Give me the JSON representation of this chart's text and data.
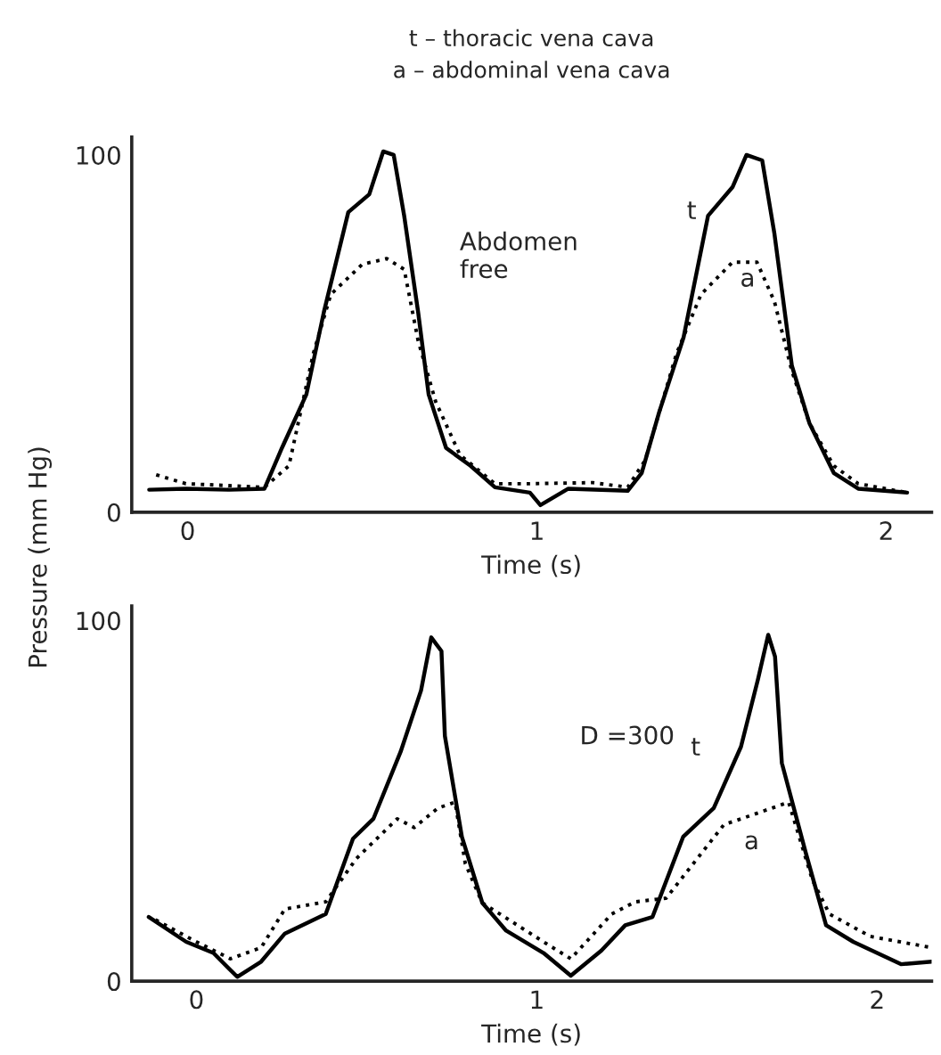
{
  "chart_data": [
    {
      "type": "line",
      "title": "t – thoracic vena cava\na – abdominal vena cava",
      "xlabel": "Time (s)",
      "ylabel": "Pressure (mm Hg)",
      "xlim": [
        -0.16,
        2.13
      ],
      "ylim": [
        0,
        105
      ],
      "xticks": [
        0,
        1,
        2
      ],
      "yticks": [
        0,
        100
      ],
      "grid": false,
      "legend": false,
      "annotations": [
        "Abdomen\nfree",
        "t",
        "a"
      ],
      "series": [
        {
          "color": "#000000",
          "line_style": "solid",
          "x": [
            -0.11,
            -0.005,
            0.12,
            0.22,
            0.27,
            0.34,
            0.39,
            0.46,
            0.52,
            0.56,
            0.59,
            0.62,
            0.66,
            0.69,
            0.74,
            0.81,
            0.88,
            0.98,
            1.01,
            1.09,
            1.26,
            1.3,
            1.35,
            1.42,
            1.49,
            1.56,
            1.6,
            1.645,
            1.68,
            1.73,
            1.78,
            1.85,
            1.92,
            2.06
          ],
          "values": [
            6.3,
            6.6,
            6.3,
            6.6,
            18,
            33,
            56,
            84,
            89,
            101,
            100,
            83,
            56,
            33,
            18,
            13,
            7,
            5.5,
            2,
            6.6,
            6,
            11,
            28,
            49,
            83,
            91,
            100,
            98.5,
            78,
            41,
            25,
            11,
            6.6,
            5.5
          ]
        },
        {
          "color": "#000000",
          "line_style": "dotted",
          "x": [
            -0.09,
            -0.005,
            0.22,
            0.29,
            0.36,
            0.41,
            0.5,
            0.57,
            0.62,
            0.66,
            0.71,
            0.78,
            0.88,
            0.98,
            1.16,
            1.26,
            1.31,
            1.4,
            1.47,
            1.56,
            1.63,
            1.68,
            1.73,
            1.78,
            1.85,
            1.92,
            2.06
          ],
          "values": [
            10.5,
            8,
            7,
            13,
            44.5,
            61,
            69.4,
            71,
            68,
            48,
            31,
            16,
            8,
            8,
            8.3,
            7,
            14.6,
            44.5,
            61,
            70,
            70,
            59,
            39.5,
            25,
            13,
            8,
            5.5
          ]
        }
      ]
    },
    {
      "type": "line",
      "xlabel": "Time (s)",
      "xlim": [
        -0.19,
        2.16
      ],
      "ylim": [
        0,
        104
      ],
      "xticks": [
        0,
        1,
        2
      ],
      "yticks": [
        0,
        100
      ],
      "grid": false,
      "legend": false,
      "annotations": [
        "D =300",
        "t",
        "a"
      ],
      "series": [
        {
          "color": "#000000",
          "line_style": "solid",
          "x": [
            -0.14,
            -0.03,
            0.05,
            0.12,
            0.19,
            0.26,
            0.38,
            0.46,
            0.52,
            0.6,
            0.66,
            0.69,
            0.72,
            0.73,
            0.78,
            0.84,
            0.91,
            1.02,
            1.1,
            1.19,
            1.26,
            1.34,
            1.43,
            1.52,
            1.6,
            1.65,
            1.68,
            1.7,
            1.72,
            1.79,
            1.85,
            1.93,
            2.07,
            2.16
          ],
          "values": [
            17.8,
            10.9,
            7.8,
            1.2,
            5.4,
            13.2,
            18.6,
            39.5,
            45,
            63.6,
            80.6,
            95.3,
            91.5,
            68,
            40,
            21.7,
            14,
            7.8,
            1.5,
            8.5,
            15.5,
            17.8,
            40,
            48,
            65,
            83.7,
            96,
            90,
            60.5,
            35.7,
            15.5,
            10.9,
            4.7,
            5.4
          ]
        },
        {
          "color": "#000000",
          "line_style": "dotted",
          "x": [
            -0.12,
            0,
            0.1,
            0.19,
            0.26,
            0.38,
            0.47,
            0.59,
            0.64,
            0.71,
            0.76,
            0.79,
            0.84,
            1.02,
            1.1,
            1.22,
            1.29,
            1.38,
            1.55,
            1.6,
            1.74,
            1.81,
            1.86,
            1.98,
            2.16
          ],
          "values": [
            17,
            10.9,
            6.2,
            9.3,
            20,
            22,
            34,
            45,
            42.6,
            48,
            49.6,
            32.6,
            21.7,
            10.9,
            6.2,
            18.6,
            22,
            23,
            43.4,
            45,
            49.6,
            28,
            18.6,
            12.4,
            9.3
          ]
        }
      ]
    }
  ]
}
